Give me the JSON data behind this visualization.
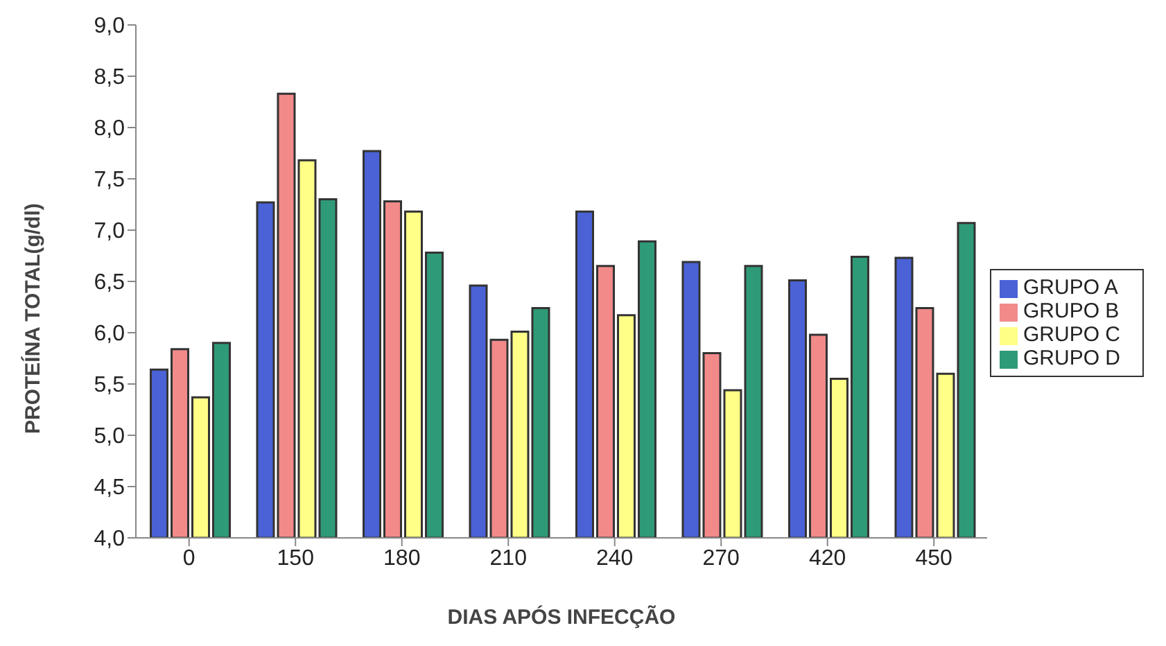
{
  "chart_data": {
    "type": "bar",
    "xlabel": "DIAS APÓS INFECÇÃO",
    "ylabel": "PROTEÍNA TOTAL(g/dl)",
    "categories": [
      "0",
      "150",
      "180",
      "210",
      "240",
      "270",
      "420",
      "450"
    ],
    "series": [
      {
        "name": "GRUPO A",
        "color": "#4a62d6",
        "values": [
          5.64,
          7.27,
          7.77,
          6.46,
          7.18,
          6.69,
          6.51,
          6.73
        ]
      },
      {
        "name": "GRUPO B",
        "color": "#f28a8a",
        "values": [
          5.84,
          8.33,
          7.28,
          5.93,
          6.65,
          5.8,
          5.98,
          6.24
        ]
      },
      {
        "name": "GRUPO C",
        "color": "#ffff88",
        "values": [
          5.37,
          7.68,
          7.18,
          6.01,
          6.17,
          5.44,
          5.55,
          5.6
        ]
      },
      {
        "name": "GRUPO D",
        "color": "#2f9a78",
        "values": [
          5.9,
          7.3,
          6.78,
          6.24,
          6.89,
          6.65,
          6.74,
          7.07
        ]
      }
    ],
    "ylim": [
      4,
      9
    ],
    "yticks": [
      {
        "value": 4,
        "label": "4,0"
      },
      {
        "value": 4.5,
        "label": "4,5"
      },
      {
        "value": 5,
        "label": "5,0"
      },
      {
        "value": 5.5,
        "label": "5,5"
      },
      {
        "value": 6,
        "label": "6,0"
      },
      {
        "value": 6.5,
        "label": "6,5"
      },
      {
        "value": 7,
        "label": "7,0"
      },
      {
        "value": 7.5,
        "label": "7,5"
      },
      {
        "value": 8,
        "label": "8,0"
      },
      {
        "value": 8.5,
        "label": "8,5"
      },
      {
        "value": 9,
        "label": "9,0"
      }
    ],
    "grid": false,
    "legend": "right"
  }
}
